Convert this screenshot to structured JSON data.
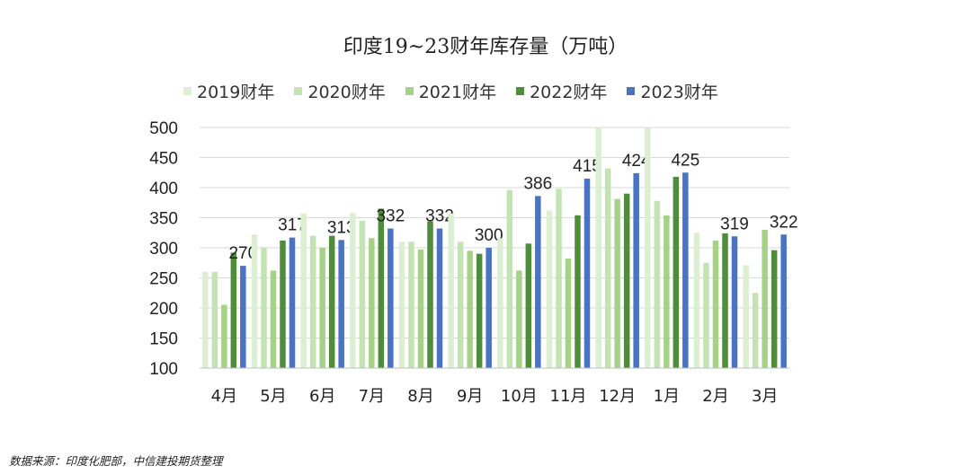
{
  "chart_data": {
    "type": "bar",
    "title": "印度19~23财年库存量（万吨）",
    "categories": [
      "4月",
      "5月",
      "6月",
      "7月",
      "8月",
      "9月",
      "10月",
      "11月",
      "12月",
      "1月",
      "2月",
      "3月"
    ],
    "ylim": [
      100,
      500
    ],
    "yticks": [
      100,
      150,
      200,
      250,
      300,
      350,
      400,
      450,
      500
    ],
    "grid": true,
    "legend_position": "top",
    "series": [
      {
        "name": "2019财年",
        "color": "#dcefd3",
        "values": [
          260,
          322,
          357,
          358,
          310,
          357,
          316,
          362,
          510,
          510,
          325,
          271
        ]
      },
      {
        "name": "2020财年",
        "color": "#c3e4b2",
        "values": [
          260,
          300,
          320,
          345,
          310,
          310,
          396,
          398,
          432,
          378,
          275,
          225
        ]
      },
      {
        "name": "2021财年",
        "color": "#a6d287",
        "values": [
          205,
          262,
          300,
          316,
          297,
          295,
          262,
          282,
          381,
          354,
          312,
          330
        ]
      },
      {
        "name": "2022财年",
        "color": "#4e8d3a",
        "values": [
          292,
          312,
          320,
          365,
          344,
          290,
          307,
          354,
          390,
          418,
          324,
          296
        ]
      },
      {
        "name": "2023财年",
        "color": "#4a73c4",
        "values": [
          270,
          317,
          313,
          332,
          332,
          300,
          386,
          415,
          424,
          425,
          319,
          322
        ]
      }
    ],
    "data_labels_series": "2023财年"
  },
  "source": "数据来源：印度化肥部，中信建投期货整理"
}
